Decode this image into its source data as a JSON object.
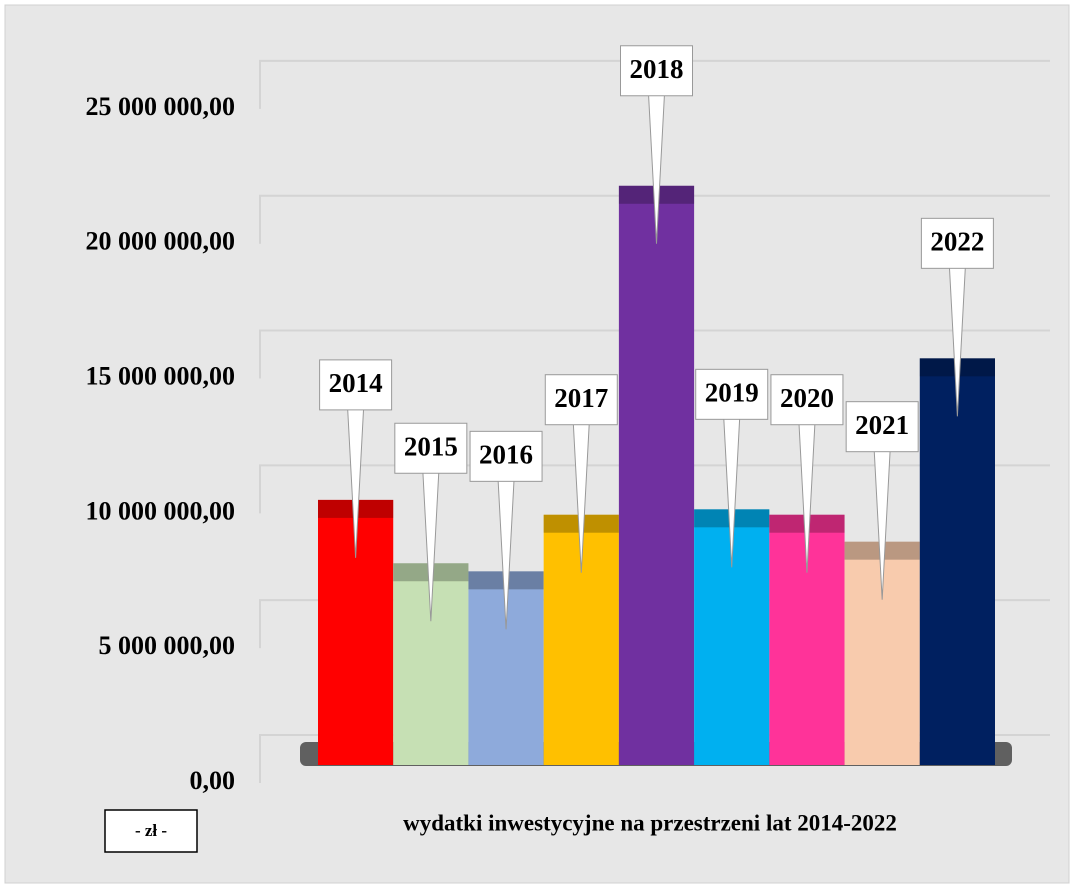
{
  "chart_data": {
    "type": "bar",
    "x_label": "wydatki inwestycyjne na przestrzeni lat 2014-2022",
    "y_unit": "- zł -",
    "categories": [
      "2014",
      "2015",
      "2016",
      "2017",
      "2018",
      "2019",
      "2020",
      "2021",
      "2022"
    ],
    "values": [
      10500000,
      8150000,
      7850000,
      9950000,
      22150000,
      10150000,
      9950000,
      8950000,
      15750000
    ],
    "colors": [
      "#ff0000",
      "#c6e0b4",
      "#8eaadb",
      "#ffc000",
      "#7030a0",
      "#00b0f0",
      "#ff3399",
      "#f8cbad",
      "#002060"
    ],
    "ylim": [
      0,
      27000000
    ],
    "yticks": [
      {
        "value": 0,
        "label": "0,00"
      },
      {
        "value": 5000000,
        "label": "5 000 000,00"
      },
      {
        "value": 10000000,
        "label": "10 000 000,00"
      },
      {
        "value": 15000000,
        "label": "15 000 000,00"
      },
      {
        "value": 20000000,
        "label": "20 000 000,00"
      },
      {
        "value": 25000000,
        "label": "25 000 000,00"
      }
    ],
    "grid": true
  }
}
